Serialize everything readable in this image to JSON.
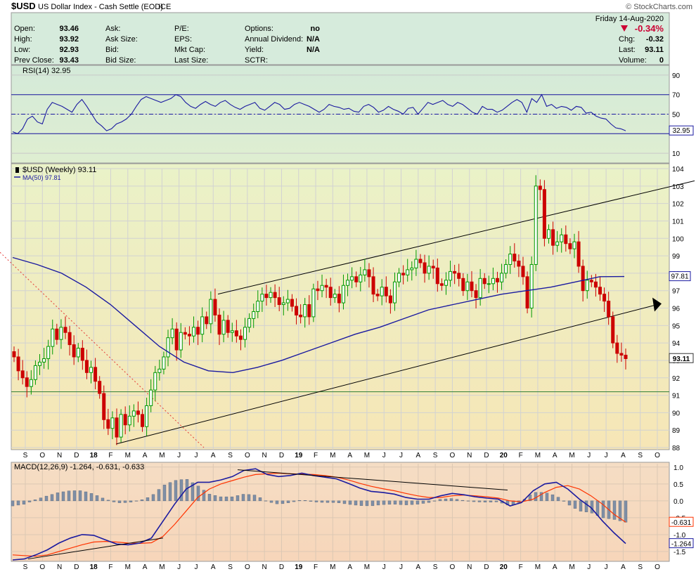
{
  "header": {
    "symbol": "$USD",
    "name": "US Dollar Index - Cash Settle (EOD)",
    "exchange": "ICE",
    "watermark": "© StockCharts.com",
    "date_line": "Friday  14-Aug-2020",
    "change_pct": "-0.34%",
    "stats": [
      {
        "label": "Open:",
        "value": "93.46"
      },
      {
        "label": "High:",
        "value": "93.92"
      },
      {
        "label": "Low:",
        "value": "92.93"
      },
      {
        "label": "Prev Close:",
        "value": "93.43"
      }
    ],
    "col2": [
      "Ask:",
      "Ask Size:",
      "Bid:",
      "Bid Size:"
    ],
    "col3": [
      "P/E:",
      "EPS:",
      "Mkt Cap:",
      "Last Size:"
    ],
    "col4": [
      {
        "label": "Options:",
        "value": "no"
      },
      {
        "label": "Annual Dividend:",
        "value": "N/A"
      },
      {
        "label": "Yield:",
        "value": "N/A"
      },
      {
        "label": "SCTR:",
        "value": ""
      }
    ],
    "right_stats": [
      {
        "label": "Chg:",
        "value": "-0.32"
      },
      {
        "label": "Last:",
        "value": "93.11"
      },
      {
        "label": "Volume:",
        "value": "0"
      }
    ],
    "colors": {
      "down": "#cc0000",
      "up": "#009900",
      "line": "#1a1aa0",
      "signal": "#ff3300"
    }
  },
  "chart_data": [
    {
      "type": "line",
      "title": "RSI(14) 32.95",
      "ylim": [
        0,
        100
      ],
      "yticks": [
        10,
        30,
        50,
        70,
        90
      ],
      "ytick_labels": [
        "10",
        "",
        "50",
        "70",
        "90"
      ],
      "reference_lines": [
        70,
        50,
        30
      ],
      "last_value_label": "32.95",
      "series": [
        {
          "name": "RSI(14)",
          "values": [
            32,
            30,
            35,
            45,
            48,
            42,
            40,
            55,
            62,
            60,
            58,
            55,
            52,
            60,
            65,
            58,
            50,
            42,
            38,
            33,
            35,
            40,
            42,
            45,
            50,
            58,
            65,
            68,
            66,
            64,
            62,
            64,
            66,
            70,
            68,
            62,
            58,
            56,
            60,
            63,
            60,
            58,
            62,
            64,
            60,
            57,
            55,
            58,
            60,
            62,
            56,
            54,
            58,
            62,
            60,
            55,
            56,
            60,
            62,
            60,
            58,
            55,
            52,
            55,
            60,
            58,
            57,
            55,
            56,
            53,
            52,
            58,
            60,
            57,
            52,
            54,
            58,
            55,
            53,
            50,
            56,
            57,
            50,
            56,
            62,
            60,
            62,
            64,
            60,
            58,
            62,
            60,
            56,
            52,
            50,
            58,
            55,
            55,
            52,
            54,
            58,
            62,
            65,
            62,
            52,
            66,
            62,
            70,
            58,
            60,
            56,
            58,
            57,
            54,
            58,
            57,
            51,
            52,
            48,
            46,
            45,
            40,
            36,
            35,
            33
          ]
        }
      ]
    },
    {
      "type": "candlestick",
      "title": "$USD (Weekly) 93.11",
      "ylim": [
        88,
        104
      ],
      "yticks": [
        88,
        89,
        90,
        91,
        92,
        93,
        94,
        95,
        96,
        97,
        98,
        99,
        100,
        101,
        102,
        103,
        104
      ],
      "x_tick_labels": [
        "S",
        "O",
        "N",
        "D",
        "18",
        "F",
        "M",
        "A",
        "M",
        "J",
        "J",
        "A",
        "S",
        "O",
        "N",
        "D",
        "19",
        "F",
        "M",
        "A",
        "M",
        "J",
        "J",
        "A",
        "S",
        "O",
        "N",
        "D",
        "20",
        "F",
        "M",
        "A",
        "M",
        "J",
        "J",
        "A",
        "S",
        "O"
      ],
      "last_value_label": "93.11",
      "ma_label": "97.81",
      "series": [
        {
          "name": "$USD (Weekly)",
          "close": [
            93.2,
            92.4,
            92.0,
            91.5,
            91.9,
            92.7,
            92.9,
            93.1,
            93.8,
            94.8,
            94.2,
            94.9,
            94.6,
            93.9,
            93.2,
            93.7,
            93.0,
            92.3,
            92.6,
            91.8,
            91.1,
            89.6,
            89.1,
            89.7,
            88.6,
            89.9,
            89.3,
            89.8,
            90.1,
            89.9,
            89.2,
            90.4,
            91.3,
            92.3,
            92.5,
            93.2,
            94.3,
            94.8,
            93.6,
            94.6,
            94.5,
            94.4,
            94.9,
            94.5,
            95.5,
            95.1,
            96.5,
            95.6,
            94.5,
            95.3,
            94.6,
            94.7,
            94.4,
            94.2,
            94.9,
            95.4,
            95.8,
            96.4,
            96.8,
            96.6,
            96.9,
            96.6,
            96.2,
            96.3,
            96.5,
            96.1,
            95.6,
            95.5,
            96.2,
            95.5,
            97.1,
            97.0,
            97.3,
            97.2,
            96.6,
            96.8,
            96.3,
            97.3,
            97.6,
            97.8,
            97.5,
            97.9,
            98.2,
            97.8,
            96.8,
            96.7,
            97.2,
            96.7,
            96.3,
            97.5,
            98.0,
            97.9,
            98.2,
            98.3,
            98.8,
            98.6,
            98.0,
            98.4,
            98.3,
            97.4,
            97.3,
            97.6,
            98.1,
            98.0,
            97.7,
            97.0,
            97.5,
            97.0,
            96.6,
            97.7,
            97.4,
            97.4,
            97.7,
            97.5,
            98.0,
            98.5,
            99.1,
            98.7,
            98.4,
            97.8,
            96.0,
            98.5,
            103.0,
            102.8,
            100.0,
            100.5,
            99.6,
            99.8,
            100.2,
            99.7,
            99.4,
            99.8,
            98.4,
            97.0,
            97.6,
            97.5,
            97.2,
            96.8,
            96.4,
            95.5,
            94.0,
            93.4,
            93.3,
            93.1
          ]
        },
        {
          "name": "MA(50)",
          "values": [
            98.9,
            98.5,
            98.0,
            97.2,
            96.2,
            95.0,
            93.8,
            92.9,
            92.4,
            92.3,
            92.6,
            93.0,
            93.5,
            94.0,
            94.5,
            94.9,
            95.4,
            95.9,
            96.2,
            96.5,
            96.8,
            97.0,
            97.2,
            97.5,
            97.8,
            97.81
          ]
        }
      ],
      "horizontal_line": 91.2,
      "annotations": [
        "ascending channel upper line",
        "ascending channel lower line with arrow",
        "dotted red downtrend line"
      ]
    },
    {
      "type": "line",
      "title": "MACD(12,26,9) -1.264, -0.631, -0.633",
      "ylim": [
        -1.75,
        1.1
      ],
      "yticks": [
        1.0,
        0.5,
        0.0,
        -0.5,
        -1.0,
        -1.5
      ],
      "ytick_labels": [
        "1.0",
        "0.5",
        "0.0",
        "-0.5",
        "-1.0",
        "-1.5"
      ],
      "last_value_labels": [
        "-0.631",
        "-1.264"
      ],
      "series": [
        {
          "name": "MACD",
          "values": [
            -1.75,
            -1.72,
            -1.6,
            -1.45,
            -1.25,
            -1.1,
            -1.0,
            -1.02,
            -1.15,
            -1.28,
            -1.3,
            -1.25,
            -1.1,
            -0.6,
            -0.1,
            0.35,
            0.55,
            0.55,
            0.62,
            0.72,
            0.9,
            0.95,
            0.78,
            0.72,
            0.75,
            0.82,
            0.75,
            0.7,
            0.65,
            0.52,
            0.38,
            0.28,
            0.25,
            0.2,
            0.1,
            0.05,
            0.05,
            0.15,
            0.22,
            0.18,
            0.12,
            0.08,
            0.05,
            -0.15,
            -0.05,
            0.3,
            0.5,
            0.55,
            0.35,
            0.05,
            -0.2,
            -0.6,
            -0.95,
            -1.264
          ]
        },
        {
          "name": "Signal",
          "values": [
            -1.6,
            -1.62,
            -1.64,
            -1.6,
            -1.5,
            -1.4,
            -1.3,
            -1.22,
            -1.2,
            -1.22,
            -1.25,
            -1.26,
            -1.24,
            -1.05,
            -0.7,
            -0.3,
            0.1,
            0.35,
            0.5,
            0.6,
            0.7,
            0.78,
            0.8,
            0.82,
            0.8,
            0.79,
            0.78,
            0.75,
            0.7,
            0.62,
            0.52,
            0.43,
            0.36,
            0.3,
            0.22,
            0.15,
            0.1,
            0.1,
            0.15,
            0.17,
            0.15,
            0.12,
            0.08,
            0.0,
            -0.03,
            0.05,
            0.25,
            0.4,
            0.45,
            0.35,
            0.15,
            -0.1,
            -0.4,
            -0.631
          ]
        },
        {
          "name": "Histogram",
          "values": []
        }
      ],
      "annotations": [
        "rising MACD trendline",
        "falling MACD trendline"
      ]
    }
  ]
}
